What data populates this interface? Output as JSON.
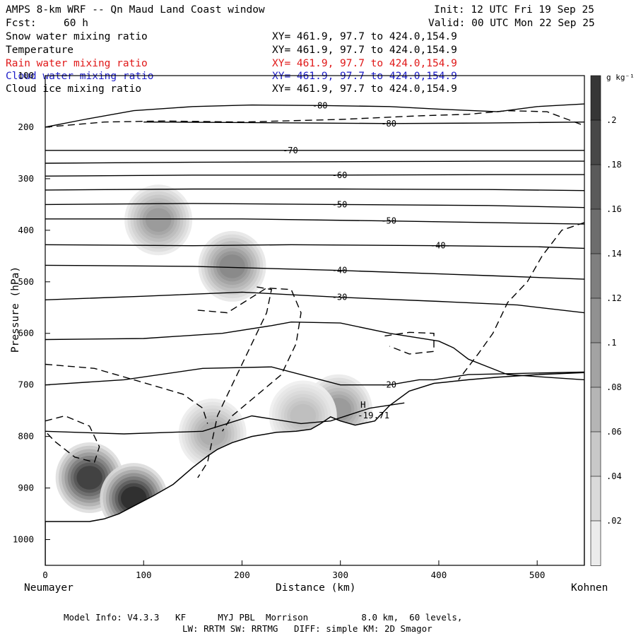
{
  "header": {
    "title": "AMPS 8-km WRF -- Qn Maud Land Coast window",
    "init": "Init: 12 UTC Fri 19 Sep 25",
    "fcst_label": "Fcst:",
    "fcst_value": "60 h",
    "valid": "Valid: 00 UTC Mon 22 Sep 25"
  },
  "fields": [
    {
      "name": "Snow water mixing ratio",
      "xy": "XY= 461.9, 97.7 to 424.0,154.9",
      "color": "#000000"
    },
    {
      "name": "Temperature",
      "xy": "XY= 461.9, 97.7 to 424.0,154.9",
      "color": "#000000"
    },
    {
      "name": "Rain water mixing ratio",
      "xy": "XY= 461.9, 97.7 to 424.0,154.9",
      "color": "#e01818"
    },
    {
      "name": "Cloud water mixing ratio",
      "xy": "XY= 461.9, 97.7 to 424.0,154.9",
      "color": "#1c1cc8"
    },
    {
      "name": "Cloud ice mixing ratio",
      "xy": "XY= 461.9, 97.7 to 424.0,154.9",
      "color": "#000000"
    }
  ],
  "footer": {
    "line1": "Model Info: V4.3.3   KF      MYJ PBL  Morrison          8.0 km,  60 levels,",
    "line2": "LW: RRTM SW: RRTMG   DIFF: simple KM: 2D Smagor"
  },
  "chart_data": {
    "type": "contour",
    "xlabel": "Distance (km)",
    "ylabel": "Pressure (hPa)",
    "xlim": [
      0,
      548
    ],
    "ylim": [
      1050,
      100
    ],
    "x_ticks": [
      0,
      100,
      200,
      300,
      400,
      500
    ],
    "y_ticks": [
      1000,
      900,
      800,
      700,
      600,
      500,
      400,
      300,
      200,
      100
    ],
    "x_end_labels": {
      "left": "Neumayer",
      "right": "Kohnen"
    },
    "colorbar": {
      "unit": "g kg⁻¹",
      "levels": [
        0.02,
        0.04,
        0.06,
        0.08,
        0.1,
        0.12,
        0.14,
        0.16,
        0.18,
        0.2
      ],
      "labels": [
        ".02",
        ".04",
        ".06",
        ".08",
        ".1",
        ".12",
        ".14",
        ".16",
        ".18",
        ".2"
      ],
      "range": [
        0,
        0.22
      ]
    },
    "extremum": {
      "label": "H",
      "value": "-19.71",
      "x": 320,
      "p": 762
    },
    "terrain": [
      [
        0,
        965
      ],
      [
        10,
        965
      ],
      [
        20,
        965
      ],
      [
        30,
        965
      ],
      [
        45,
        965
      ],
      [
        60,
        960
      ],
      [
        75,
        950
      ],
      [
        90,
        935
      ],
      [
        110,
        915
      ],
      [
        130,
        893
      ],
      [
        150,
        860
      ],
      [
        165,
        838
      ],
      [
        175,
        825
      ],
      [
        190,
        812
      ],
      [
        210,
        800
      ],
      [
        235,
        792
      ],
      [
        255,
        790
      ],
      [
        270,
        786
      ],
      [
        280,
        775
      ],
      [
        290,
        762
      ],
      [
        300,
        770
      ],
      [
        315,
        778
      ],
      [
        335,
        770
      ],
      [
        350,
        740
      ],
      [
        370,
        712
      ],
      [
        395,
        697
      ],
      [
        430,
        690
      ],
      [
        460,
        685
      ],
      [
        500,
        680
      ],
      [
        548,
        676
      ]
    ],
    "isotherms": [
      {
        "label": "-80",
        "points": [
          [
            0,
            200
          ],
          [
            40,
            185
          ],
          [
            90,
            168
          ],
          [
            150,
            160
          ],
          [
            210,
            157
          ],
          [
            280,
            158
          ],
          [
            350,
            160
          ],
          [
            400,
            165
          ],
          [
            460,
            170
          ],
          [
            500,
            160
          ],
          [
            548,
            155
          ]
        ]
      },
      {
        "label": "-80",
        "points": [
          [
            100,
            190
          ],
          [
            200,
            191
          ],
          [
            350,
            193
          ],
          [
            450,
            192
          ],
          [
            548,
            190
          ]
        ]
      },
      {
        "label": "-70",
        "points": [
          [
            0,
            245
          ],
          [
            100,
            245
          ],
          [
            250,
            245
          ],
          [
            400,
            245
          ],
          [
            548,
            245
          ]
        ]
      },
      {
        "label": "",
        "points": [
          [
            0,
            270
          ],
          [
            150,
            268
          ],
          [
            300,
            267
          ],
          [
            450,
            266
          ],
          [
            548,
            266
          ]
        ]
      },
      {
        "label": "-60",
        "points": [
          [
            0,
            295
          ],
          [
            150,
            293
          ],
          [
            300,
            293
          ],
          [
            450,
            292
          ],
          [
            548,
            292
          ]
        ]
      },
      {
        "label": "",
        "points": [
          [
            0,
            322
          ],
          [
            150,
            320
          ],
          [
            300,
            320
          ],
          [
            450,
            321
          ],
          [
            548,
            323
          ]
        ]
      },
      {
        "label": "-50",
        "points": [
          [
            0,
            350
          ],
          [
            150,
            348
          ],
          [
            300,
            350
          ],
          [
            450,
            352
          ],
          [
            548,
            356
          ]
        ]
      },
      {
        "label": "-50",
        "points": [
          [
            0,
            378
          ],
          [
            200,
            378
          ],
          [
            350,
            382
          ],
          [
            450,
            385
          ],
          [
            548,
            388
          ]
        ]
      },
      {
        "label": "-40",
        "points": [
          [
            0,
            428
          ],
          [
            150,
            430
          ],
          [
            250,
            428
          ],
          [
            400,
            430
          ],
          [
            500,
            432
          ],
          [
            548,
            435
          ]
        ]
      },
      {
        "label": "-40",
        "points": [
          [
            0,
            468
          ],
          [
            150,
            470
          ],
          [
            300,
            478
          ],
          [
            450,
            488
          ],
          [
            548,
            495
          ]
        ]
      },
      {
        "label": "-30",
        "points": [
          [
            0,
            535
          ],
          [
            100,
            528
          ],
          [
            200,
            520
          ],
          [
            300,
            530
          ],
          [
            400,
            538
          ],
          [
            480,
            545
          ],
          [
            548,
            560
          ]
        ]
      },
      {
        "label": "",
        "points": [
          [
            0,
            612
          ],
          [
            100,
            610
          ],
          [
            180,
            600
          ],
          [
            230,
            585
          ],
          [
            250,
            578
          ],
          [
            300,
            580
          ],
          [
            350,
            600
          ],
          [
            400,
            615
          ],
          [
            415,
            628
          ],
          [
            430,
            650
          ],
          [
            470,
            680
          ],
          [
            548,
            690
          ]
        ]
      },
      {
        "label": "-20",
        "points": [
          [
            0,
            700
          ],
          [
            80,
            690
          ],
          [
            160,
            668
          ],
          [
            230,
            665
          ],
          [
            300,
            700
          ],
          [
            350,
            700
          ],
          [
            380,
            690
          ],
          [
            395,
            690
          ],
          [
            430,
            680
          ],
          [
            548,
            675
          ]
        ]
      },
      {
        "label": "",
        "points": [
          [
            0,
            790
          ],
          [
            80,
            795
          ],
          [
            160,
            790
          ],
          [
            210,
            760
          ],
          [
            260,
            775
          ],
          [
            290,
            770
          ],
          [
            330,
            745
          ],
          [
            365,
            735
          ]
        ]
      }
    ],
    "dashed_contours": [
      {
        "points": [
          [
            0,
            200
          ],
          [
            60,
            190
          ],
          [
            120,
            188
          ],
          [
            200,
            190
          ],
          [
            300,
            185
          ],
          [
            380,
            178
          ],
          [
            430,
            175
          ],
          [
            470,
            168
          ],
          [
            510,
            170
          ],
          [
            545,
            195
          ]
        ]
      },
      {
        "points": [
          [
            0,
            660
          ],
          [
            50,
            668
          ],
          [
            90,
            690
          ],
          [
            140,
            718
          ],
          [
            160,
            745
          ],
          [
            165,
            775
          ]
        ]
      },
      {
        "points": [
          [
            215,
            510
          ],
          [
            230,
            515
          ],
          [
            225,
            560
          ],
          [
            210,
            620
          ],
          [
            190,
            700
          ],
          [
            175,
            760
          ],
          [
            165,
            850
          ],
          [
            155,
            880
          ]
        ]
      },
      {
        "points": [
          [
            155,
            555
          ],
          [
            185,
            560
          ],
          [
            225,
            512
          ],
          [
            250,
            515
          ],
          [
            260,
            560
          ],
          [
            255,
            620
          ],
          [
            240,
            680
          ],
          [
            215,
            720
          ],
          [
            190,
            760
          ],
          [
            180,
            790
          ]
        ]
      },
      {
        "points": [
          [
            345,
            605
          ],
          [
            370,
            598
          ],
          [
            395,
            600
          ],
          [
            395,
            635
          ],
          [
            370,
            640
          ],
          [
            350,
            625
          ]
        ]
      },
      {
        "points": [
          [
            548,
            385
          ],
          [
            525,
            400
          ],
          [
            505,
            450
          ],
          [
            490,
            500
          ],
          [
            470,
            540
          ],
          [
            455,
            600
          ],
          [
            440,
            640
          ],
          [
            420,
            690
          ]
        ]
      },
      {
        "points": [
          [
            0,
            770
          ],
          [
            20,
            760
          ],
          [
            45,
            780
          ],
          [
            55,
            820
          ],
          [
            50,
            850
          ],
          [
            30,
            840
          ],
          [
            10,
            810
          ],
          [
            0,
            790
          ]
        ]
      }
    ],
    "shading": [
      {
        "field": "snow",
        "x": 45,
        "p": 880,
        "max": 0.2
      },
      {
        "field": "snow",
        "x": 90,
        "p": 920,
        "max": 0.22
      },
      {
        "field": "snow",
        "x": 170,
        "p": 795,
        "max": 0.08
      },
      {
        "field": "snow",
        "x": 115,
        "p": 380,
        "max": 0.1
      },
      {
        "field": "snow",
        "x": 190,
        "p": 470,
        "max": 0.12
      },
      {
        "field": "snow",
        "x": 298,
        "p": 748,
        "max": 0.1
      },
      {
        "field": "snow",
        "x": 262,
        "p": 760,
        "max": 0.06
      }
    ]
  }
}
